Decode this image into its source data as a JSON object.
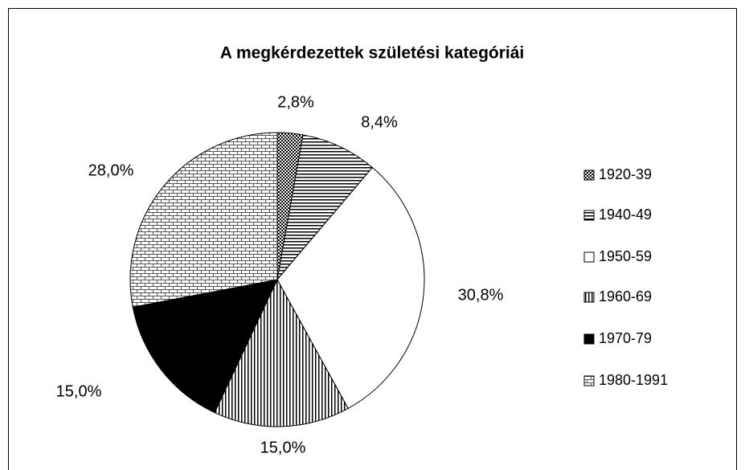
{
  "chart_data": {
    "type": "pie",
    "title": "A megkérdezettek születési kategóriái",
    "categories": [
      "1920-39",
      "1940-49",
      "1950-59",
      "1960-69",
      "1970-79",
      "1980-1991"
    ],
    "values": [
      2.8,
      8.4,
      30.8,
      15.0,
      15.0,
      28.0
    ],
    "value_labels": [
      "2,8%",
      "8,4%",
      "30,8%",
      "15,0%",
      "15,0%",
      "28,0%"
    ],
    "legend": "right"
  }
}
